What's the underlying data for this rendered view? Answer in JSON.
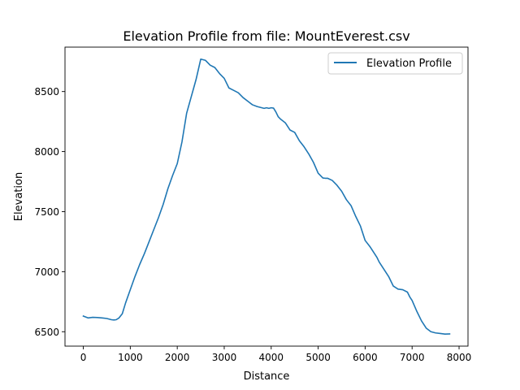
{
  "chart_data": {
    "type": "line",
    "title": "Elevation Profile from file: MountEverest.csv",
    "xlabel": "Distance",
    "ylabel": "Elevation",
    "xlim": [
      -390,
      8190
    ],
    "ylim": [
      6380,
      8870
    ],
    "x_ticks": [
      0,
      1000,
      2000,
      3000,
      4000,
      5000,
      6000,
      7000,
      8000
    ],
    "y_ticks": [
      6500,
      7000,
      7500,
      8000,
      8500
    ],
    "grid": false,
    "legend_position": "top-right",
    "series": [
      {
        "name": "Elevation Profile",
        "color": "#1f77b4",
        "x": [
          0,
          100,
          200,
          300,
          400,
          500,
          600,
          650,
          700,
          760,
          830,
          900,
          1000,
          1100,
          1200,
          1300,
          1400,
          1500,
          1600,
          1700,
          1800,
          1900,
          2000,
          2100,
          2200,
          2300,
          2350,
          2400,
          2500,
          2600,
          2650,
          2700,
          2800,
          2900,
          3000,
          3100,
          3200,
          3300,
          3400,
          3500,
          3600,
          3700,
          3800,
          3850,
          3900,
          3950,
          4000,
          4050,
          4100,
          4150,
          4200,
          4300,
          4400,
          4500,
          4600,
          4700,
          4800,
          4900,
          5000,
          5100,
          5150,
          5200,
          5300,
          5400,
          5500,
          5600,
          5700,
          5800,
          5900,
          6000,
          6100,
          6200,
          6250,
          6300,
          6400,
          6500,
          6600,
          6700,
          6800,
          6900,
          6950,
          7000,
          7100,
          7200,
          7300,
          7400,
          7500,
          7600,
          7700,
          7800
        ],
        "y": [
          6630,
          6615,
          6620,
          6618,
          6615,
          6610,
          6600,
          6598,
          6600,
          6615,
          6650,
          6740,
          6850,
          6960,
          7060,
          7150,
          7250,
          7350,
          7450,
          7560,
          7690,
          7800,
          7900,
          8080,
          8320,
          8460,
          8530,
          8600,
          8770,
          8760,
          8740,
          8720,
          8700,
          8650,
          8610,
          8530,
          8510,
          8490,
          8450,
          8420,
          8390,
          8375,
          8365,
          8360,
          8365,
          8360,
          8365,
          8362,
          8330,
          8290,
          8270,
          8240,
          8180,
          8160,
          8090,
          8040,
          7980,
          7910,
          7820,
          7780,
          7778,
          7778,
          7760,
          7720,
          7670,
          7600,
          7550,
          7460,
          7380,
          7260,
          7210,
          7150,
          7120,
          7080,
          7020,
          6960,
          6880,
          6855,
          6850,
          6830,
          6790,
          6760,
          6670,
          6590,
          6530,
          6500,
          6490,
          6485,
          6480,
          6482
        ]
      }
    ]
  }
}
